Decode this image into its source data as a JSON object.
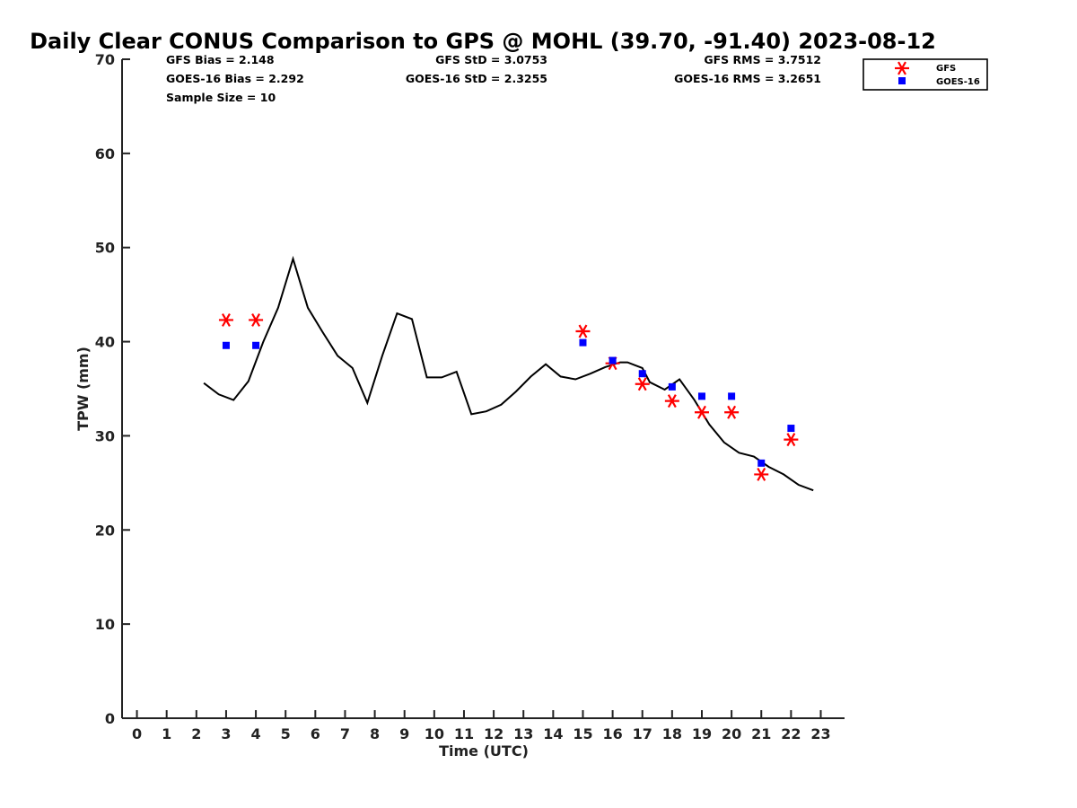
{
  "chart_data": {
    "type": "line",
    "title": "Daily Clear CONUS Comparison to GPS @ MOHL (39.70, -91.40) 2023-08-12",
    "xlabel": "Time (UTC)",
    "ylabel": "TPW (mm)",
    "xlim": [
      -0.5,
      23.8
    ],
    "ylim": [
      0,
      70
    ],
    "x_ticks": [
      "0",
      "1",
      "2",
      "3",
      "4",
      "5",
      "6",
      "7",
      "8",
      "9",
      "10",
      "11",
      "12",
      "13",
      "14",
      "15",
      "16",
      "17",
      "18",
      "19",
      "20",
      "21",
      "22",
      "23"
    ],
    "y_ticks": [
      "0",
      "10",
      "20",
      "30",
      "40",
      "50",
      "60",
      "70"
    ],
    "grid": false,
    "legend_position": "top-right",
    "stats": {
      "gfs_bias": "GFS Bias = 2.148",
      "goes_bias": "GOES-16 Bias = 2.292",
      "sample_size": "Sample Size = 10",
      "gfs_std": "GFS StD = 3.0753",
      "goes_std": "GOES-16 StD = 2.3255",
      "gfs_rms": "GFS RMS = 3.7512",
      "goes_rms": "GOES-16 RMS = 3.2651"
    },
    "series": [
      {
        "type": "line",
        "color": "#000000",
        "x": [
          2.25,
          2.75,
          3.25,
          3.75,
          4.25,
          4.75,
          5.25,
          5.75,
          6.25,
          6.75,
          7.25,
          7.75,
          8.25,
          8.75,
          9.25,
          9.75,
          10.25,
          10.75,
          11.25,
          11.75,
          12.25,
          12.75,
          13.25,
          13.75,
          14.25,
          14.75,
          15.25,
          15.75,
          16.25,
          16.5,
          16.75,
          17.0,
          17.25,
          17.75,
          18.25,
          18.75,
          19.25,
          19.75,
          20.25,
          20.75,
          21.25,
          21.75,
          22.25,
          22.75
        ],
        "y": [
          35.6,
          34.4,
          33.8,
          35.8,
          40.0,
          43.6,
          48.8,
          43.6,
          41.0,
          38.5,
          37.2,
          33.5,
          38.5,
          43.0,
          42.4,
          36.2,
          36.2,
          36.8,
          32.3,
          32.6,
          33.3,
          34.7,
          36.3,
          37.6,
          36.3,
          36.0,
          36.6,
          37.3,
          37.8,
          37.8,
          37.5,
          37.2,
          35.7,
          34.9,
          36.0,
          33.8,
          31.2,
          29.3,
          28.2,
          27.8,
          26.7,
          25.9,
          24.8,
          24.2
        ]
      },
      {
        "name": "GFS",
        "type": "scatter",
        "marker": "asterisk",
        "color": "#ff0000",
        "x": [
          3,
          4,
          15,
          16,
          17,
          18,
          19,
          20,
          21,
          22
        ],
        "y": [
          42.3,
          42.3,
          41.1,
          37.7,
          35.5,
          33.7,
          32.5,
          32.5,
          25.9,
          29.6
        ]
      },
      {
        "name": "GOES-16",
        "type": "scatter",
        "marker": "square",
        "color": "#0000ff",
        "x": [
          3,
          4,
          15,
          16,
          17,
          18,
          19,
          20,
          21,
          22
        ],
        "y": [
          39.6,
          39.6,
          39.9,
          38.0,
          36.6,
          35.2,
          34.2,
          34.2,
          27.1,
          30.8
        ]
      }
    ]
  }
}
